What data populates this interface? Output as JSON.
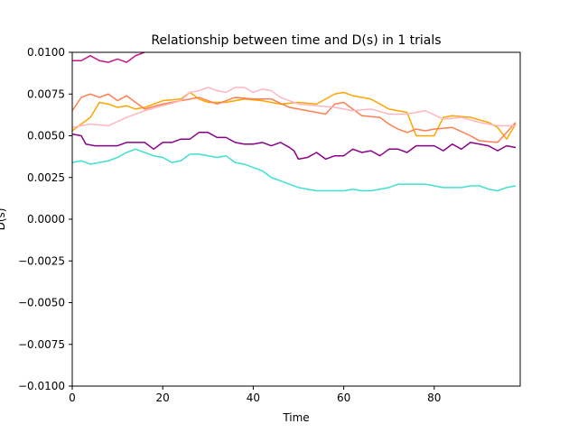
{
  "chart_data": {
    "type": "line",
    "title": "Relationship between time and D(s) in 1 trials",
    "xlabel": "Time",
    "ylabel": "D(s)",
    "xlim": [
      0,
      99
    ],
    "ylim": [
      -0.01,
      0.01
    ],
    "xticks": [
      0,
      20,
      40,
      60,
      80
    ],
    "xtick_labels": [
      "0",
      "20",
      "40",
      "60",
      "80"
    ],
    "yticks": [
      -0.01,
      -0.0075,
      -0.005,
      -0.0025,
      0.0,
      0.0025,
      0.005,
      0.0075,
      0.01
    ],
    "ytick_labels": [
      "−0.0100",
      "−0.0075",
      "−0.0050",
      "−0.0025",
      "0.0000",
      "0.0025",
      "0.0050",
      "0.0075",
      "0.0100"
    ],
    "grid": false,
    "legend": "none",
    "series": [
      {
        "color": "#c71585",
        "x": [
          0,
          2,
          4,
          6,
          8,
          10,
          12,
          14,
          16
        ],
        "y": [
          0.0095,
          0.0095,
          0.0098,
          0.0095,
          0.0094,
          0.0096,
          0.0094,
          0.0098,
          0.01
        ]
      },
      {
        "color": "#ffa500",
        "x": [
          0,
          4,
          6,
          8,
          10,
          12,
          14,
          16,
          20,
          24,
          26,
          28,
          30,
          34,
          38,
          42,
          46,
          50,
          54,
          58,
          60,
          62,
          66,
          70,
          74,
          76,
          78,
          80,
          82,
          84,
          88,
          92,
          94,
          96,
          98
        ],
        "y": [
          0.0053,
          0.0061,
          0.007,
          0.0069,
          0.0067,
          0.0068,
          0.0066,
          0.0067,
          0.0071,
          0.0072,
          0.0076,
          0.0072,
          0.007,
          0.007,
          0.0072,
          0.0071,
          0.0069,
          0.007,
          0.0069,
          0.0075,
          0.0076,
          0.0074,
          0.0072,
          0.0066,
          0.0064,
          0.005,
          0.005,
          0.005,
          0.0061,
          0.0062,
          0.0061,
          0.0058,
          0.0055,
          0.0048,
          0.0057
        ]
      },
      {
        "color": "#ff7f50",
        "x": [
          0,
          2,
          4,
          6,
          8,
          10,
          12,
          14,
          16,
          20,
          24,
          28,
          32,
          36,
          40,
          44,
          48,
          52,
          56,
          58,
          60,
          64,
          68,
          70,
          72,
          74,
          76,
          78,
          80,
          84,
          88,
          90,
          94,
          98
        ],
        "y": [
          0.0065,
          0.0073,
          0.0075,
          0.0073,
          0.0075,
          0.0071,
          0.0074,
          0.007,
          0.0066,
          0.0069,
          0.0071,
          0.0073,
          0.0069,
          0.0073,
          0.0072,
          0.0072,
          0.0067,
          0.0065,
          0.0063,
          0.0069,
          0.007,
          0.0062,
          0.0061,
          0.0057,
          0.0054,
          0.0052,
          0.0054,
          0.0053,
          0.0054,
          0.0055,
          0.005,
          0.0047,
          0.0046,
          0.0058
        ]
      },
      {
        "color": "#ffb6c1",
        "x": [
          0,
          2,
          4,
          8,
          12,
          16,
          20,
          24,
          26,
          28,
          30,
          32,
          34,
          36,
          38,
          40,
          42,
          44,
          46,
          50,
          54,
          58,
          62,
          66,
          70,
          74,
          78,
          82,
          86,
          90,
          94,
          98
        ],
        "y": [
          0.0055,
          0.0056,
          0.0057,
          0.0056,
          0.0061,
          0.0065,
          0.0068,
          0.0071,
          0.0076,
          0.0077,
          0.0079,
          0.0077,
          0.0076,
          0.0079,
          0.0079,
          0.0076,
          0.0078,
          0.0077,
          0.0073,
          0.0069,
          0.0068,
          0.0067,
          0.0065,
          0.0066,
          0.0063,
          0.0063,
          0.0065,
          0.006,
          0.0061,
          0.0058,
          0.0056,
          0.0056
        ]
      },
      {
        "color": "#8b008b",
        "x": [
          0,
          2,
          3,
          5,
          10,
          12,
          16,
          18,
          20,
          22,
          24,
          26,
          28,
          30,
          32,
          34,
          36,
          38,
          40,
          42,
          44,
          46,
          48,
          49,
          50,
          52,
          54,
          56,
          58,
          60,
          62,
          64,
          66,
          68,
          70,
          72,
          74,
          76,
          78,
          80,
          82,
          84,
          86,
          88,
          90,
          92,
          94,
          96,
          98
        ],
        "y": [
          0.0051,
          0.005,
          0.0045,
          0.0044,
          0.0044,
          0.0046,
          0.0046,
          0.0042,
          0.0046,
          0.0046,
          0.0048,
          0.0048,
          0.0052,
          0.0052,
          0.0049,
          0.0049,
          0.0046,
          0.0045,
          0.0045,
          0.0046,
          0.0044,
          0.0046,
          0.0043,
          0.0041,
          0.0036,
          0.0037,
          0.004,
          0.0036,
          0.0038,
          0.0038,
          0.0042,
          0.004,
          0.0041,
          0.0038,
          0.0042,
          0.0042,
          0.004,
          0.0044,
          0.0044,
          0.0044,
          0.0041,
          0.0045,
          0.0042,
          0.0046,
          0.0045,
          0.0044,
          0.0041,
          0.0044,
          0.0043
        ]
      },
      {
        "color": "#40e0d0",
        "x": [
          0,
          2,
          4,
          6,
          8,
          10,
          12,
          14,
          16,
          18,
          20,
          22,
          24,
          26,
          28,
          30,
          32,
          34,
          36,
          38,
          40,
          42,
          44,
          46,
          48,
          50,
          52,
          54,
          56,
          58,
          60,
          62,
          64,
          66,
          68,
          70,
          72,
          74,
          76,
          78,
          80,
          82,
          84,
          86,
          88,
          90,
          92,
          94,
          96,
          98
        ],
        "y": [
          0.0034,
          0.0035,
          0.0033,
          0.0034,
          0.0035,
          0.0037,
          0.004,
          0.0042,
          0.004,
          0.0038,
          0.0037,
          0.0034,
          0.0035,
          0.0039,
          0.0039,
          0.0038,
          0.0037,
          0.0038,
          0.0034,
          0.0033,
          0.0031,
          0.0029,
          0.0025,
          0.0023,
          0.0021,
          0.0019,
          0.0018,
          0.0017,
          0.0017,
          0.0017,
          0.0017,
          0.0018,
          0.0017,
          0.0017,
          0.0018,
          0.0019,
          0.0021,
          0.0021,
          0.0021,
          0.0021,
          0.002,
          0.0019,
          0.0019,
          0.0019,
          0.002,
          0.002,
          0.0018,
          0.0017,
          0.0019,
          0.002
        ]
      }
    ]
  }
}
